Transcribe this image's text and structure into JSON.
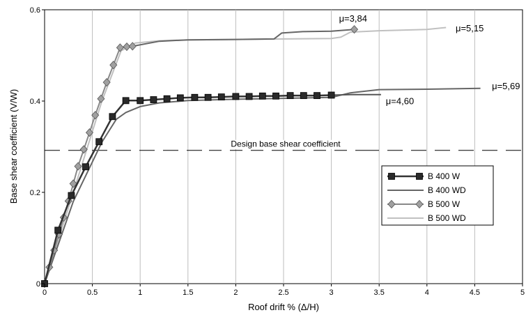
{
  "chart_data": {
    "type": "line",
    "title": "",
    "xlabel": "Roof drift % (Δ/H)",
    "ylabel": "Base shear coefficient (V/W)",
    "xlim": [
      0,
      5
    ],
    "ylim": [
      0,
      0.6
    ],
    "x_ticks": [
      0,
      0.5,
      1,
      1.5,
      2,
      2.5,
      3,
      3.5,
      4,
      4.5,
      5
    ],
    "x_tick_labels": [
      "0",
      "0.5",
      "1",
      "1.5",
      "2",
      "2.5",
      "3",
      "3.5",
      "4",
      "4.5",
      "5"
    ],
    "y_ticks": [
      0,
      0.2,
      0.4,
      0.6
    ],
    "y_tick_labels": [
      "0",
      "0.2",
      "0.4",
      "0.6"
    ],
    "grid": "vertical",
    "legend_position": "right",
    "series": [
      {
        "name": "B 400 W",
        "color": "#333333",
        "marker": "square",
        "x": [
          0,
          0.14,
          0.28,
          0.43,
          0.57,
          0.71,
          0.85,
          1.0,
          1.14,
          1.28,
          1.42,
          1.57,
          1.71,
          1.85,
          2.0,
          2.14,
          2.28,
          2.42,
          2.57,
          2.71,
          2.85,
          3.0
        ],
        "y": [
          0,
          0.117,
          0.193,
          0.256,
          0.311,
          0.366,
          0.401,
          0.401,
          0.403,
          0.405,
          0.407,
          0.408,
          0.408,
          0.409,
          0.41,
          0.41,
          0.411,
          0.411,
          0.412,
          0.412,
          0.412,
          0.413
        ]
      },
      {
        "name": "B 400 WD",
        "color": "#666666",
        "marker": "none",
        "x": [
          0,
          0.3,
          0.6,
          0.75,
          0.85,
          1.0,
          1.2,
          1.5,
          2.0,
          2.5,
          3.0,
          3.2,
          3.5,
          4.0,
          4.56
        ],
        "y": [
          0,
          0.18,
          0.31,
          0.36,
          0.375,
          0.388,
          0.396,
          0.401,
          0.404,
          0.406,
          0.408,
          0.418,
          0.425,
          0.426,
          0.428
        ]
      },
      {
        "name": "B 500 W",
        "color": "#888888",
        "marker": "diamond",
        "x": [
          0,
          0.05,
          0.1,
          0.15,
          0.2,
          0.25,
          0.3,
          0.35,
          0.41,
          0.47,
          0.53,
          0.59,
          0.65,
          0.72,
          0.79,
          0.86,
          0.92
        ],
        "y": [
          0,
          0.036,
          0.073,
          0.108,
          0.145,
          0.181,
          0.219,
          0.257,
          0.294,
          0.331,
          0.369,
          0.405,
          0.441,
          0.479,
          0.517,
          0.519,
          0.52
        ]
      },
      {
        "name": "B 500 WD",
        "color": "#c0c0c0",
        "marker": "none",
        "x": [
          0,
          0.3,
          0.6,
          0.8,
          0.95,
          1.2,
          1.5,
          2.0,
          2.5,
          3.0,
          3.1,
          3.2,
          3.5,
          4.0,
          4.2
        ],
        "y": [
          0,
          0.2,
          0.4,
          0.51,
          0.527,
          0.532,
          0.534,
          0.535,
          0.536,
          0.537,
          0.54,
          0.551,
          0.554,
          0.557,
          0.561
        ]
      }
    ],
    "extra_lines": [
      {
        "name": "B 400 WD continuation",
        "color": "#555555",
        "x": [
          3.0,
          3.2,
          3.52
        ],
        "y": [
          0.413,
          0.414,
          0.414
        ]
      },
      {
        "name": "B 500 W continuation",
        "color": "#666666",
        "x": [
          0.92,
          1.2,
          1.5,
          2.0,
          2.4,
          2.48,
          2.7,
          3.0,
          3.24
        ],
        "y": [
          0.52,
          0.531,
          0.534,
          0.535,
          0.536,
          0.549,
          0.552,
          0.553,
          0.557
        ]
      }
    ],
    "reference_line": {
      "y": 0.292,
      "label": "Design base shear coefficient",
      "style": "dashed"
    },
    "annotations": [
      {
        "text": "μ=3,84",
        "x": 3.08,
        "y": 0.574
      },
      {
        "text": "μ=5,15",
        "x": 4.3,
        "y": 0.553
      },
      {
        "text": "μ=5,69",
        "x": 4.68,
        "y": 0.426
      },
      {
        "text": "μ=4,60",
        "x": 3.57,
        "y": 0.393
      }
    ]
  }
}
